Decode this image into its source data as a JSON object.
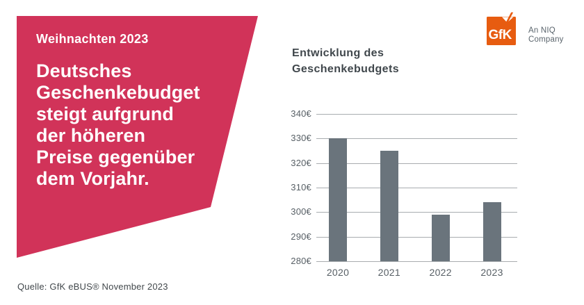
{
  "banner": {
    "kicker": "Weihnachten 2023",
    "headline_lines": [
      "Deutsches",
      "Geschenkebudget",
      "steigt aufgrund",
      "der höheren",
      "Preise gegenüber",
      "dem Vorjahr."
    ],
    "bg_color": "#d13359",
    "text_color": "#ffffff"
  },
  "logo": {
    "mark_text": "GfK",
    "mark_color": "#e75c10",
    "tagline_lines": [
      "An NIQ",
      "Company"
    ]
  },
  "chart_data": {
    "type": "bar",
    "title": "Entwicklung des Geschenkebudgets",
    "title_lines": [
      "Entwicklung des",
      "Geschenkebudgets"
    ],
    "categories": [
      "2020",
      "2021",
      "2022",
      "2023"
    ],
    "values": [
      330,
      325,
      299,
      304
    ],
    "unit": "€",
    "xlabel": "",
    "ylabel": "",
    "ylim": [
      280,
      340
    ],
    "ytick_step": 10,
    "ytick_labels": [
      "340€",
      "330€",
      "320€",
      "310€",
      "300€",
      "290€",
      "280€"
    ],
    "grid": true,
    "legend": false,
    "bar_color": "#6a747c",
    "grid_color": "#a8acaf",
    "label_color": "#575f65"
  },
  "source": "Quelle: GfK eBUS® November 2023"
}
